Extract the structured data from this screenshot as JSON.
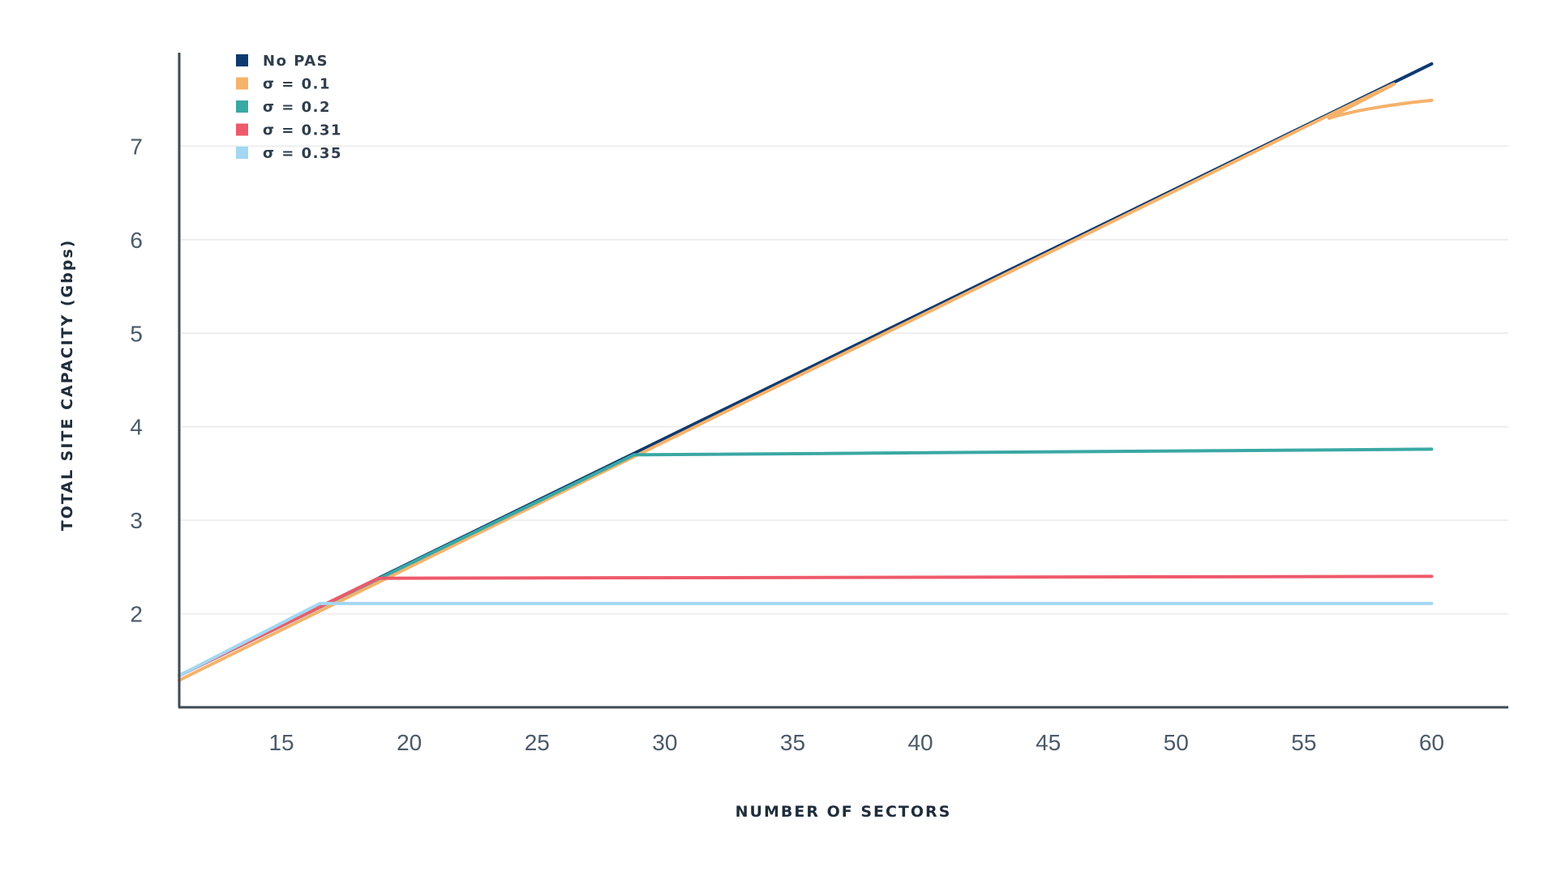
{
  "chart_data": {
    "type": "line",
    "title": "",
    "xlabel": "NUMBER OF SECTORS",
    "ylabel": "TOTAL SITE CAPACITY (Gbps)",
    "xlim": [
      11,
      63
    ],
    "ylim": [
      1.0,
      8.0
    ],
    "xticks": [
      15,
      20,
      25,
      30,
      35,
      40,
      45,
      50,
      55,
      60
    ],
    "yticks": [
      2,
      3,
      4,
      5,
      6,
      7
    ],
    "grid": true,
    "legend_position": "top-left",
    "series": [
      {
        "name": "No PAS",
        "color": "#0d3a70",
        "x": [
          11,
          60
        ],
        "y": [
          1.34,
          7.88
        ]
      },
      {
        "name": "σ = 0.1",
        "color": "#f5b26b",
        "x": [
          11,
          55,
          56,
          57,
          58,
          59,
          60
        ],
        "y": [
          1.29,
          7.2,
          7.3,
          7.37,
          7.42,
          7.46,
          7.49
        ]
      },
      {
        "name": "σ = 0.2",
        "color": "#3aa8a4",
        "x": [
          11,
          28.8,
          60
        ],
        "y": [
          1.34,
          3.7,
          3.76
        ]
      },
      {
        "name": "σ = 0.31",
        "color": "#ee5a6b",
        "x": [
          11,
          18.8,
          60
        ],
        "y": [
          1.34,
          2.38,
          2.4
        ]
      },
      {
        "name": "σ = 0.35",
        "color": "#a3d7f2",
        "x": [
          11,
          16.5,
          60
        ],
        "y": [
          1.34,
          2.11,
          2.11
        ]
      }
    ]
  }
}
